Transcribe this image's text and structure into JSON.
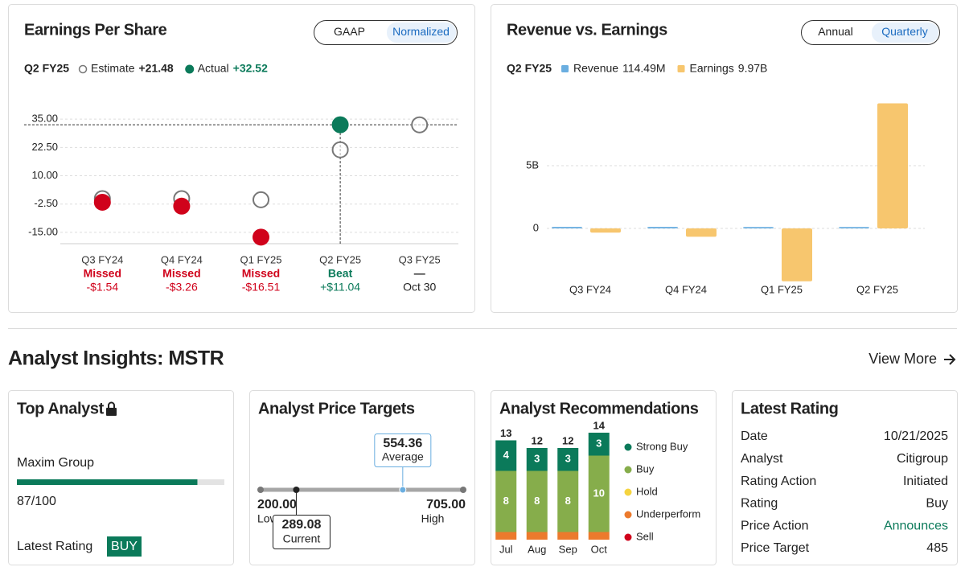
{
  "chart_data": [
    {
      "type": "scatter",
      "title": "Earnings Per Share",
      "toggle": [
        "GAAP",
        "Normalized"
      ],
      "active_toggle": 1,
      "period": "Q2 FY25",
      "categories": [
        "Q3 FY24",
        "Q4 FY24",
        "Q1 FY25",
        "Q2 FY25",
        "Q3 FY25"
      ],
      "series": [
        {
          "name": "Estimate",
          "color": "#777777",
          "summary": "+21.48",
          "summary_color": "#222222",
          "values": [
            -0.1,
            -0.1,
            -0.6,
            21.48,
            32.5
          ]
        },
        {
          "name": "Actual",
          "color": "#0b7a5a",
          "summary": "+32.52",
          "summary_color": "#0b7a5a",
          "values": [
            -1.7,
            -3.4,
            -17.1,
            32.52,
            null
          ]
        }
      ],
      "results": [
        {
          "label": "Missed",
          "note": "-$1.54",
          "color": "#d0021b",
          "note_color": "#d0021b"
        },
        {
          "label": "Missed",
          "note": "-$3.26",
          "color": "#d0021b",
          "note_color": "#d0021b"
        },
        {
          "label": "Missed",
          "note": "-$16.51",
          "color": "#d0021b",
          "note_color": "#d0021b"
        },
        {
          "label": "Beat",
          "note": "+$11.04",
          "color": "#0b7a5a",
          "note_color": "#0b7a5a"
        },
        {
          "label": "—",
          "note": "Oct 30",
          "color": "#222222",
          "note_color": "#222222"
        }
      ],
      "ylim": [
        -20,
        45
      ],
      "yticks": [
        {
          "value": 35,
          "label": "35.00"
        },
        {
          "value": 22.5,
          "label": "22.50"
        },
        {
          "value": 10,
          "label": "10.00"
        },
        {
          "value": -2.5,
          "label": "-2.50"
        },
        {
          "value": -15,
          "label": "-15.00"
        }
      ],
      "grid": true
    },
    {
      "type": "bar",
      "title": "Revenue vs. Earnings",
      "toggle": [
        "Annual",
        "Quarterly"
      ],
      "active_toggle": 1,
      "period": "Q2 FY25",
      "categories": [
        "Q3 FY24",
        "Q4 FY24",
        "Q1 FY25",
        "Q2 FY25"
      ],
      "series": [
        {
          "name": "Revenue",
          "color": "#6aaee0",
          "summary": "114.49M",
          "values": [
            116070000,
            120700000,
            111070000,
            114490000
          ]
        },
        {
          "name": "Earnings",
          "color": "#f7c66e",
          "summary": "9.97B",
          "values": [
            -340000000,
            -670000000,
            -4220000000,
            9970000000
          ]
        }
      ],
      "ylim": [
        -4400000000,
        11200000000
      ],
      "yticks": [
        {
          "value": 5000000000,
          "label": "5B"
        },
        0
      ],
      "grid": true
    },
    {
      "type": "stacked_bar",
      "title": "Analyst Recommendations",
      "categories": [
        "Jul",
        "Aug",
        "Sep",
        "Oct"
      ],
      "series": [
        {
          "name": "Strong Buy",
          "color": "#0b7a5a",
          "values": [
            4,
            3,
            3,
            3
          ]
        },
        {
          "name": "Buy",
          "color": "#86ad4b",
          "values": [
            8,
            8,
            8,
            10
          ]
        },
        {
          "name": "Hold",
          "color": "#f5d43f",
          "values": [
            0,
            0,
            0,
            0
          ]
        },
        {
          "name": "Underperform",
          "color": "#ec7a2d",
          "values": [
            1,
            1,
            1,
            1
          ]
        },
        {
          "name": "Sell",
          "color": "#d0021b",
          "values": [
            0,
            0,
            0,
            0
          ]
        }
      ],
      "totals": [
        13,
        12,
        12,
        14
      ]
    }
  ],
  "analyst_insights": {
    "title": "Analyst Insights: MSTR",
    "link": "View More",
    "top_analyst": {
      "title": "Top Analyst",
      "name": "Maxim Group",
      "score": {
        "value": 87,
        "max": 100,
        "label": "87/100"
      },
      "rating_label": "Latest Rating",
      "rating": "BUY"
    },
    "price_targets": {
      "title": "Analyst Price Targets",
      "low": {
        "name": "Low",
        "value": 200,
        "label": "200.00"
      },
      "average": {
        "name": "Average",
        "value": 554.36,
        "label": "554.36"
      },
      "high": {
        "name": "High",
        "value": 705,
        "label": "705.00"
      },
      "current": {
        "name": "Current",
        "value": 289.08,
        "label": "289.08"
      }
    },
    "latest_rating": {
      "title": "Latest Rating",
      "rows": [
        {
          "label": "Date",
          "value": "10/21/2025"
        },
        {
          "label": "Analyst",
          "value": "Citigroup"
        },
        {
          "label": "Rating Action",
          "value": "Initiated"
        },
        {
          "label": "Rating",
          "value": "Buy"
        },
        {
          "label": "Price Action",
          "value": "Announces",
          "color": "#0b7a5a"
        },
        {
          "label": "Price Target",
          "value": 485
        }
      ]
    }
  }
}
